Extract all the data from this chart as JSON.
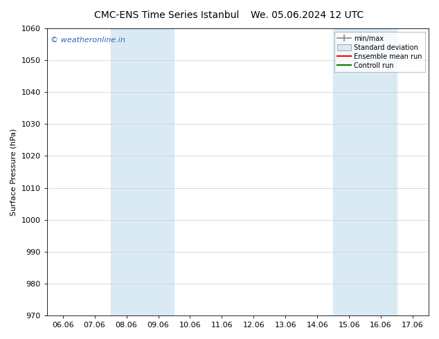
{
  "title_left": "CMC-ENS Time Series Istanbul",
  "title_right": "We. 05.06.2024 12 UTC",
  "ylabel": "Surface Pressure (hPa)",
  "ylim": [
    970,
    1060
  ],
  "yticks": [
    970,
    980,
    990,
    1000,
    1010,
    1020,
    1030,
    1040,
    1050,
    1060
  ],
  "xtick_labels": [
    "06.06",
    "07.06",
    "08.06",
    "09.06",
    "10.06",
    "11.06",
    "12.06",
    "13.06",
    "14.06",
    "15.06",
    "16.06",
    "17.06"
  ],
  "shaded_regions": [
    {
      "xstart_label": "08.06",
      "xend_label": "09.06",
      "color": "#daeaf5"
    },
    {
      "xstart_label": "15.06",
      "xend_label": "16.06",
      "color": "#daeaf5"
    }
  ],
  "watermark": "© weatheronline.in",
  "watermark_color": "#3366bb",
  "background_color": "#ffffff",
  "legend_items": [
    {
      "label": "min/max",
      "type": "errorbar",
      "color": "#aaaaaa"
    },
    {
      "label": "Standard deviation",
      "type": "box",
      "facecolor": "#daeaf5",
      "edgecolor": "#aaaaaa"
    },
    {
      "label": "Ensemble mean run",
      "type": "line",
      "color": "#ff0000"
    },
    {
      "label": "Controll run",
      "type": "line",
      "color": "#007700"
    }
  ],
  "title_fontsize": 10,
  "ylabel_fontsize": 8,
  "tick_fontsize": 8,
  "legend_fontsize": 7,
  "watermark_fontsize": 8
}
